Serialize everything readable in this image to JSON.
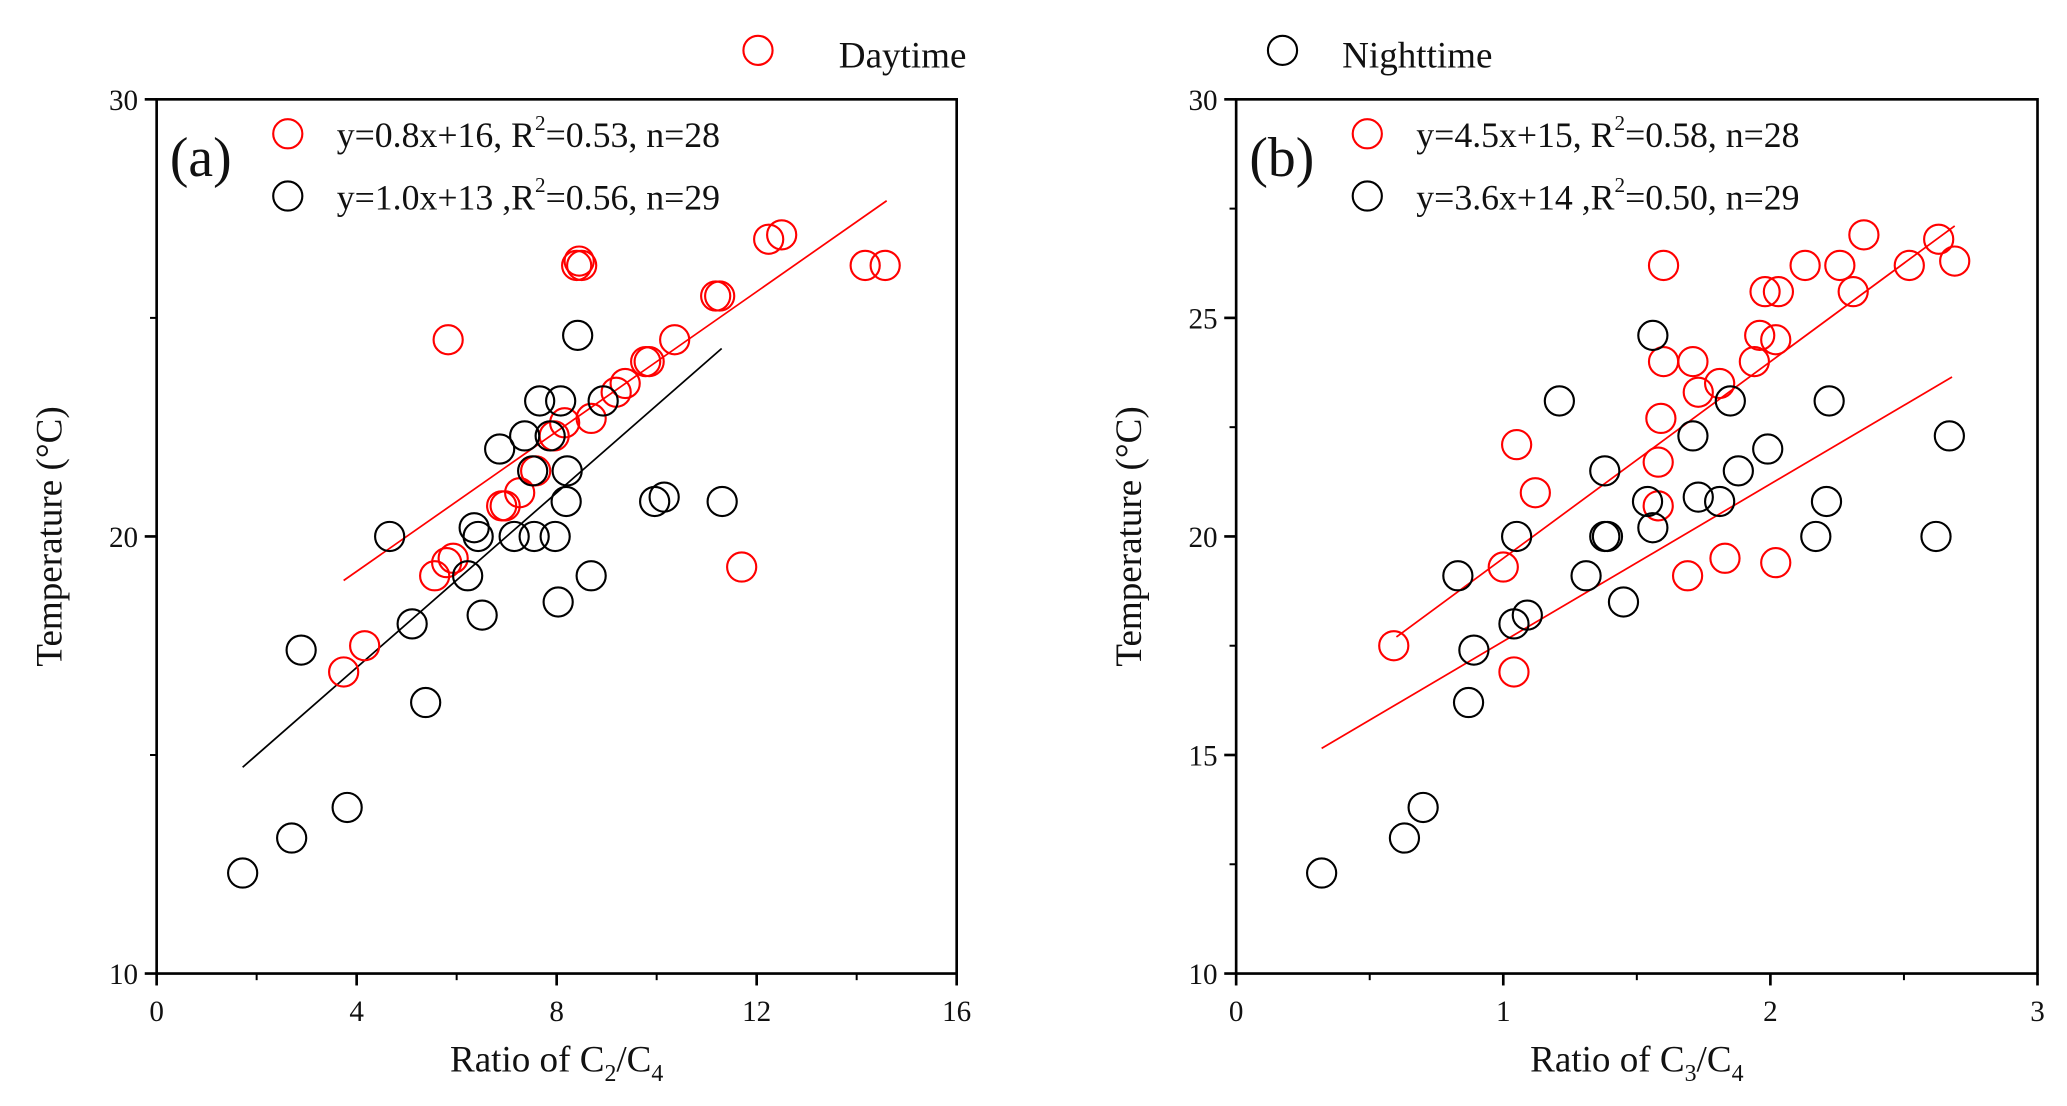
{
  "legend": {
    "day_label": "Daytime",
    "night_label": "Nighttime",
    "day_color": "#ff0000",
    "night_color": "#000000"
  },
  "chart_data": [
    {
      "type": "scatter",
      "panel_label": "(a)",
      "xlabel_parts": [
        "Ratio of C",
        "2",
        "/C",
        "4"
      ],
      "ylabel": "Temperature (°C)",
      "xlim": [
        0,
        16
      ],
      "ylim": [
        10,
        30
      ],
      "xticks": [
        "0",
        "4",
        "8",
        "12",
        "16"
      ],
      "xtick_values": [
        0,
        4,
        8,
        12,
        16
      ],
      "xminor": [
        2,
        6,
        10,
        14
      ],
      "yticks": [
        "10",
        "20",
        "30"
      ],
      "ytick_values": [
        10,
        20,
        30
      ],
      "yminor": [
        15,
        25
      ],
      "series": [
        {
          "name": "Daytime",
          "color": "#ff0000",
          "equation_parts": [
            "y=0.8x+16, R",
            "2",
            "=0.53, n=28"
          ],
          "fit": {
            "slope": 0.8,
            "intercept": 16,
            "x_range": [
              3.74,
              14.6
            ],
            "color": "#ff0000"
          },
          "points": [
            [
              3.74,
              16.9
            ],
            [
              4.16,
              17.5
            ],
            [
              5.56,
              19.1
            ],
            [
              5.8,
              19.4
            ],
            [
              5.93,
              19.5
            ],
            [
              5.83,
              24.5
            ],
            [
              6.97,
              20.7
            ],
            [
              7.26,
              21.0
            ],
            [
              7.58,
              21.5
            ],
            [
              7.95,
              22.3
            ],
            [
              8.16,
              22.6
            ],
            [
              8.69,
              22.7
            ],
            [
              8.4,
              26.2
            ],
            [
              8.5,
              26.2
            ],
            [
              9.19,
              23.3
            ],
            [
              9.37,
              23.5
            ],
            [
              9.78,
              24.0
            ],
            [
              9.85,
              24.0
            ],
            [
              10.36,
              24.5
            ],
            [
              11.18,
              25.5
            ],
            [
              11.26,
              25.5
            ],
            [
              12.24,
              26.8
            ],
            [
              12.5,
              26.9
            ],
            [
              11.7,
              19.3
            ],
            [
              14.17,
              26.2
            ],
            [
              14.57,
              26.2
            ],
            [
              6.9,
              20.7
            ],
            [
              8.45,
              26.3
            ]
          ]
        },
        {
          "name": "Nighttime",
          "color": "#000000",
          "equation_parts": [
            "y=1.0x+13 ,R",
            "2",
            "=0.56, n=29"
          ],
          "fit": {
            "slope": 1.0,
            "intercept": 13,
            "x_range": [
              1.72,
              11.3
            ],
            "color": "#000000"
          },
          "points": [
            [
              1.72,
              12.3
            ],
            [
              2.7,
              13.1
            ],
            [
              3.81,
              13.8
            ],
            [
              2.89,
              17.4
            ],
            [
              4.66,
              20.0
            ],
            [
              5.11,
              18.0
            ],
            [
              5.38,
              16.2
            ],
            [
              6.22,
              19.1
            ],
            [
              6.35,
              20.2
            ],
            [
              6.43,
              20.0
            ],
            [
              6.51,
              18.2
            ],
            [
              6.86,
              22.0
            ],
            [
              7.15,
              20.0
            ],
            [
              7.36,
              22.3
            ],
            [
              7.52,
              21.5
            ],
            [
              7.55,
              20.0
            ],
            [
              7.66,
              23.1
            ],
            [
              7.87,
              22.3
            ],
            [
              7.97,
              20.0
            ],
            [
              8.03,
              18.5
            ],
            [
              8.08,
              23.1
            ],
            [
              8.21,
              21.5
            ],
            [
              8.19,
              20.8
            ],
            [
              8.42,
              24.6
            ],
            [
              8.69,
              19.1
            ],
            [
              8.93,
              23.1
            ],
            [
              9.96,
              20.8
            ],
            [
              10.15,
              20.9
            ],
            [
              11.31,
              20.8
            ]
          ]
        }
      ]
    },
    {
      "type": "scatter",
      "panel_label": "(b)",
      "xlabel_parts": [
        "Ratio of C",
        "3",
        "/C",
        "4"
      ],
      "ylabel": "Temperature (°C)",
      "xlim": [
        0,
        3
      ],
      "ylim": [
        10,
        30
      ],
      "xticks": [
        "0",
        "1",
        "2",
        "3"
      ],
      "xtick_values": [
        0,
        1,
        2,
        3
      ],
      "xminor": [
        0.5,
        1.5,
        2.5
      ],
      "yticks": [
        "10",
        "15",
        "20",
        "25",
        "30"
      ],
      "ytick_values": [
        10,
        15,
        20,
        25,
        30
      ],
      "yminor": [
        12.5,
        17.5,
        22.5,
        27.5
      ],
      "series": [
        {
          "name": "Daytime",
          "color": "#ff0000",
          "equation_parts": [
            "y=4.5x+15, R",
            "2",
            "=0.58, n=28"
          ],
          "fit": {
            "slope": 4.5,
            "intercept": 15,
            "x_range": [
              0.6,
              2.69
            ],
            "color": "#ff0000"
          },
          "points": [
            [
              0.59,
              17.5
            ],
            [
              1.0,
              19.3
            ],
            [
              1.04,
              16.9
            ],
            [
              1.05,
              22.1
            ],
            [
              1.12,
              21.0
            ],
            [
              1.59,
              22.7
            ],
            [
              1.58,
              21.7
            ],
            [
              1.6,
              24.0
            ],
            [
              1.6,
              26.2
            ],
            [
              1.58,
              20.7
            ],
            [
              1.69,
              19.1
            ],
            [
              1.71,
              24.0
            ],
            [
              1.73,
              23.3
            ],
            [
              1.83,
              19.5
            ],
            [
              1.81,
              23.5
            ],
            [
              1.94,
              24.0
            ],
            [
              1.96,
              24.6
            ],
            [
              1.98,
              25.6
            ],
            [
              2.02,
              24.5
            ],
            [
              2.03,
              25.6
            ],
            [
              2.02,
              19.4
            ],
            [
              2.13,
              26.2
            ],
            [
              2.26,
              26.2
            ],
            [
              2.31,
              25.6
            ],
            [
              2.35,
              26.9
            ],
            [
              2.52,
              26.2
            ],
            [
              2.63,
              26.8
            ],
            [
              2.69,
              26.3
            ]
          ]
        },
        {
          "name": "Nighttime",
          "color": "#000000",
          "equation_parts": [
            "y=3.6x+14 ,R",
            "2",
            "=0.50, n=29"
          ],
          "fit": {
            "slope": 3.6,
            "intercept": 14,
            "x_range": [
              0.32,
              2.68
            ],
            "color": "#ff0000"
          },
          "points": [
            [
              0.32,
              12.3
            ],
            [
              0.63,
              13.1
            ],
            [
              0.7,
              13.8
            ],
            [
              0.83,
              19.1
            ],
            [
              0.87,
              16.2
            ],
            [
              0.89,
              17.4
            ],
            [
              1.04,
              18.0
            ],
            [
              1.05,
              20.0
            ],
            [
              1.09,
              18.2
            ],
            [
              1.21,
              23.1
            ],
            [
              1.31,
              19.1
            ],
            [
              1.38,
              21.5
            ],
            [
              1.38,
              20.0
            ],
            [
              1.39,
              20.0
            ],
            [
              1.45,
              18.5
            ],
            [
              1.54,
              20.8
            ],
            [
              1.56,
              24.6
            ],
            [
              1.56,
              20.2
            ],
            [
              1.71,
              22.3
            ],
            [
              1.73,
              20.9
            ],
            [
              1.81,
              20.8
            ],
            [
              1.85,
              23.1
            ],
            [
              1.88,
              21.5
            ],
            [
              1.99,
              22.0
            ],
            [
              2.17,
              20.0
            ],
            [
              2.21,
              20.8
            ],
            [
              2.22,
              23.1
            ],
            [
              2.62,
              20.0
            ],
            [
              2.67,
              22.3
            ]
          ]
        }
      ]
    }
  ]
}
